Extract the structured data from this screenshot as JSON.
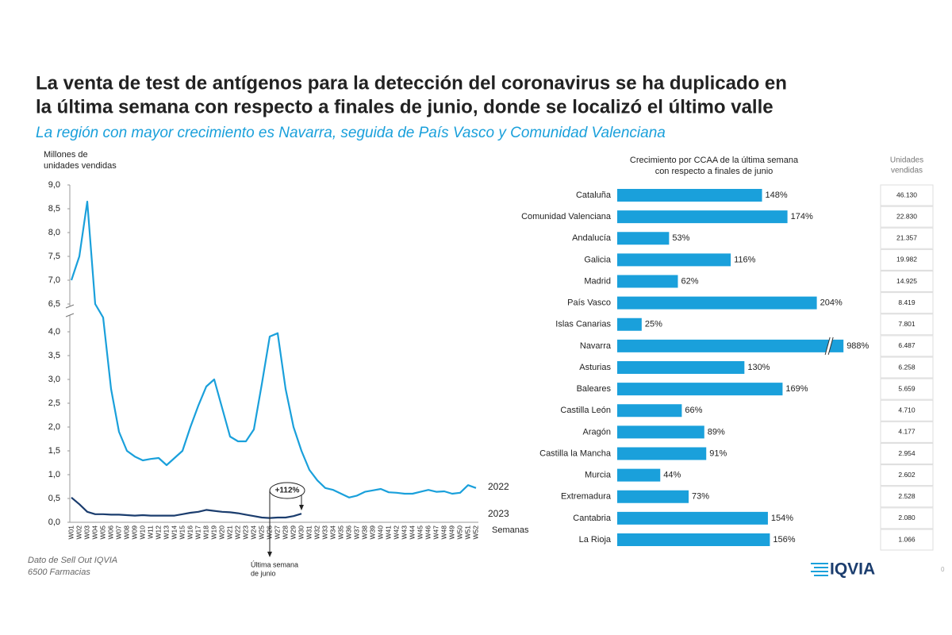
{
  "title": [
    "La venta de test de antígenos para la detección del coronavirus se ha duplicado en",
    "la última semana con respecto a finales de junio, donde se localizó el último valle"
  ],
  "subtitle": "La región con mayor crecimiento es Navarra, seguida de País Vasco y Comunidad Valenciana",
  "footnote": [
    "Dato de Sell Out  IQVIA",
    "6500 Farmacias"
  ],
  "logo": "IQVIA",
  "page_number": "0",
  "table": {
    "header": [
      "Unidades",
      "vendidas"
    ],
    "rows": [
      "46.130",
      "22.830",
      "21.357",
      "19.982",
      "14.925",
      "8.419",
      "7.801",
      "6.487",
      "6.258",
      "5.659",
      "4.710",
      "4.177",
      "2.954",
      "2.602",
      "2.528",
      "2.080",
      "1.066"
    ]
  },
  "chart_data": [
    {
      "type": "line",
      "y_label": [
        "Millones de",
        "unidades vendidas"
      ],
      "x_label": "Semanas",
      "annotation_growth": "+112%",
      "annotation_note": [
        "Última semana",
        "de junio"
      ],
      "categories": [
        "W01",
        "W02",
        "W03",
        "W04",
        "W05",
        "W06",
        "W07",
        "W08",
        "W09",
        "W10",
        "W11",
        "W12",
        "W13",
        "W14",
        "W15",
        "W16",
        "W17",
        "W18",
        "W19",
        "W20",
        "W21",
        "W22",
        "W23",
        "W24",
        "W25",
        "W26",
        "W27",
        "W28",
        "W29",
        "W30",
        "W31",
        "W32",
        "W33",
        "W34",
        "W35",
        "W36",
        "W37",
        "W38",
        "W39",
        "W40",
        "W41",
        "W42",
        "W43",
        "W44",
        "W45",
        "W46",
        "W47",
        "W48",
        "W49",
        "W50",
        "W51",
        "W52"
      ],
      "series": [
        {
          "name": "2022",
          "color": "#1aa0db",
          "values": [
            7.0,
            7.5,
            8.65,
            6.5,
            4.3,
            2.8,
            1.9,
            1.5,
            1.38,
            1.3,
            1.33,
            1.35,
            1.2,
            1.35,
            1.5,
            2.0,
            2.45,
            2.85,
            3.0,
            2.4,
            1.8,
            1.7,
            1.7,
            1.95,
            2.9,
            3.9,
            3.97,
            2.8,
            2.0,
            1.5,
            1.1,
            0.88,
            0.72,
            0.68,
            0.6,
            0.52,
            0.56,
            0.64,
            0.67,
            0.7,
            0.63,
            0.62,
            0.6,
            0.6,
            0.64,
            0.68,
            0.64,
            0.65,
            0.6,
            0.62,
            0.78,
            0.72
          ]
        },
        {
          "name": "2023",
          "color": "#1b3d6e",
          "values": [
            0.52,
            0.38,
            0.22,
            0.17,
            0.17,
            0.16,
            0.16,
            0.15,
            0.14,
            0.15,
            0.14,
            0.14,
            0.14,
            0.14,
            0.17,
            0.2,
            0.22,
            0.26,
            0.24,
            0.22,
            0.21,
            0.19,
            0.16,
            0.13,
            0.1,
            0.09,
            0.1,
            0.1,
            0.13,
            0.18,
            null,
            null,
            null,
            null,
            null,
            null,
            null,
            null,
            null,
            null,
            null,
            null,
            null,
            null,
            null,
            null,
            null,
            null,
            null,
            null,
            null,
            null
          ]
        }
      ],
      "ylim": [
        0,
        9
      ],
      "ybreak": [
        4.3,
        6.5
      ],
      "yticks": [
        {
          "value": 0,
          "label": "0,0"
        },
        {
          "value": 0.5,
          "label": "0,5"
        },
        {
          "value": 1,
          "label": "1,0"
        },
        {
          "value": 1.5,
          "label": "1,5"
        },
        {
          "value": 2,
          "label": "2,0"
        },
        {
          "value": 2.5,
          "label": "2,5"
        },
        {
          "value": 3,
          "label": "3,0"
        },
        {
          "value": 3.5,
          "label": "3,5"
        },
        {
          "value": 4,
          "label": "4,0"
        },
        {
          "value": 6.5,
          "label": "6,5"
        },
        {
          "value": 7,
          "label": "7,0"
        },
        {
          "value": 7.5,
          "label": "7,5"
        },
        {
          "value": 8,
          "label": "8,0"
        },
        {
          "value": 8.5,
          "label": "8,5"
        },
        {
          "value": 9,
          "label": "9,0"
        }
      ]
    },
    {
      "type": "bar",
      "orientation": "horizontal",
      "title": [
        "Crecimiento por CCAA de la última semana",
        "con respecto a finales de junio"
      ],
      "color": "#1aa0db",
      "categories": [
        "Cataluña",
        "Comunidad Valenciana",
        "Andalucía",
        "Galicia",
        "Madrid",
        "País Vasco",
        "Islas Canarias",
        "Navarra",
        "Asturias",
        "Baleares",
        "Castilla León",
        "Aragón",
        "Castilla la Mancha",
        "Murcia",
        "Extremadura",
        "Cantabria",
        "La Rioja"
      ],
      "values": [
        148,
        174,
        53,
        116,
        62,
        204,
        25,
        988,
        130,
        169,
        66,
        89,
        91,
        44,
        73,
        154,
        156
      ],
      "value_labels": [
        "148%",
        "174%",
        "53%",
        "116%",
        "62%",
        "204%",
        "25%",
        "988%",
        "130%",
        "169%",
        "66%",
        "89%",
        "91%",
        "44%",
        "73%",
        "154%",
        "156%"
      ],
      "xlim": [
        0,
        1000
      ],
      "xbreak": [
        215,
        975
      ]
    }
  ]
}
